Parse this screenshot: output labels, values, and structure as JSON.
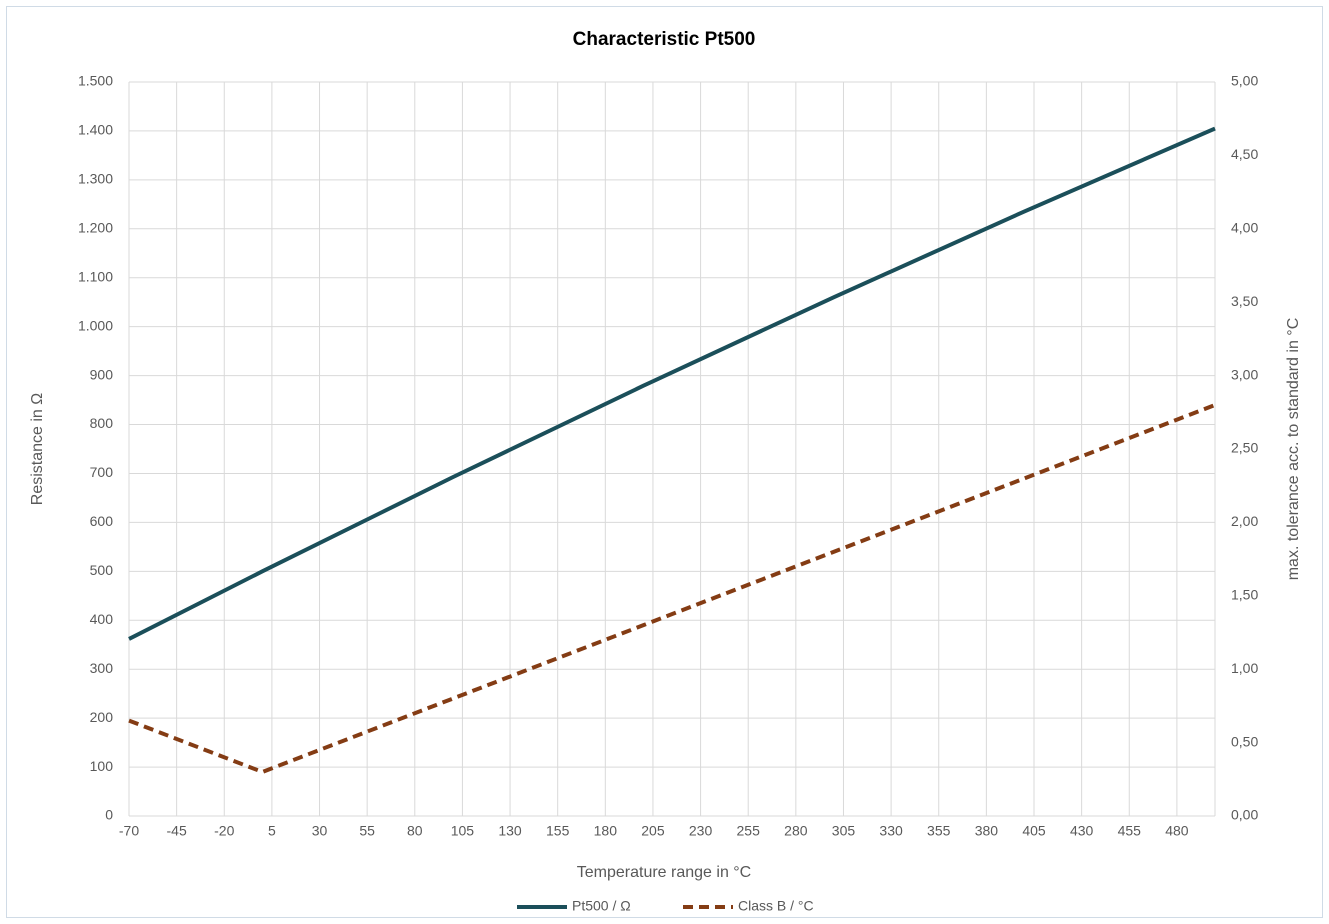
{
  "chart_data": {
    "type": "line",
    "title": "Characteristic Pt500",
    "x_label": "Temperature range in °C",
    "y_label": "Resistance in Ω",
    "y2_label": "max. tolerance acc. to standard in °C",
    "x": [
      -70,
      0,
      100,
      200,
      300,
      400,
      500
    ],
    "series": [
      {
        "name": "Pt500 / Ω",
        "color": "#1b4f5a",
        "dash": false,
        "values": [
          361.8,
          500,
          692.5,
          879.3,
          1060.3,
          1235.5,
          1404.9
        ]
      },
      {
        "name": "Class B / °C",
        "color": "#843c14",
        "dash": true,
        "axis": "y2",
        "values": [
          0.65,
          0.3,
          0.8,
          1.3,
          1.8,
          2.3,
          2.8
        ]
      }
    ],
    "xlim": [
      -70,
      500
    ],
    "xticks": [
      -70,
      -45,
      -20,
      5,
      30,
      55,
      80,
      105,
      130,
      155,
      180,
      205,
      230,
      255,
      280,
      305,
      330,
      355,
      380,
      405,
      430,
      455,
      480
    ],
    "ylim": [
      0,
      1500
    ],
    "yticks": [
      0,
      100,
      200,
      300,
      400,
      500,
      600,
      700,
      800,
      900,
      {
        "value": 1000,
        "label": "1.000"
      },
      {
        "value": 1100,
        "label": "1.100"
      },
      {
        "value": 1200,
        "label": "1.200"
      },
      {
        "value": 1300,
        "label": "1.300"
      },
      {
        "value": 1400,
        "label": "1.400"
      },
      {
        "value": 1500,
        "label": "1.500"
      }
    ],
    "y2lim": [
      0,
      5
    ],
    "y2ticks": [
      {
        "value": 0,
        "label": "0,00"
      },
      {
        "value": 0.5,
        "label": "0,50"
      },
      {
        "value": 1,
        "label": "1,00"
      },
      {
        "value": 1.5,
        "label": "1,50"
      },
      {
        "value": 2,
        "label": "2,00"
      },
      {
        "value": 2.5,
        "label": "2,50"
      },
      {
        "value": 3,
        "label": "3,00"
      },
      {
        "value": 3.5,
        "label": "3,50"
      },
      {
        "value": 4,
        "label": "4,00"
      },
      {
        "value": 4.5,
        "label": "4,50"
      },
      {
        "value": 5,
        "label": "5,00"
      }
    ],
    "grid": true
  }
}
